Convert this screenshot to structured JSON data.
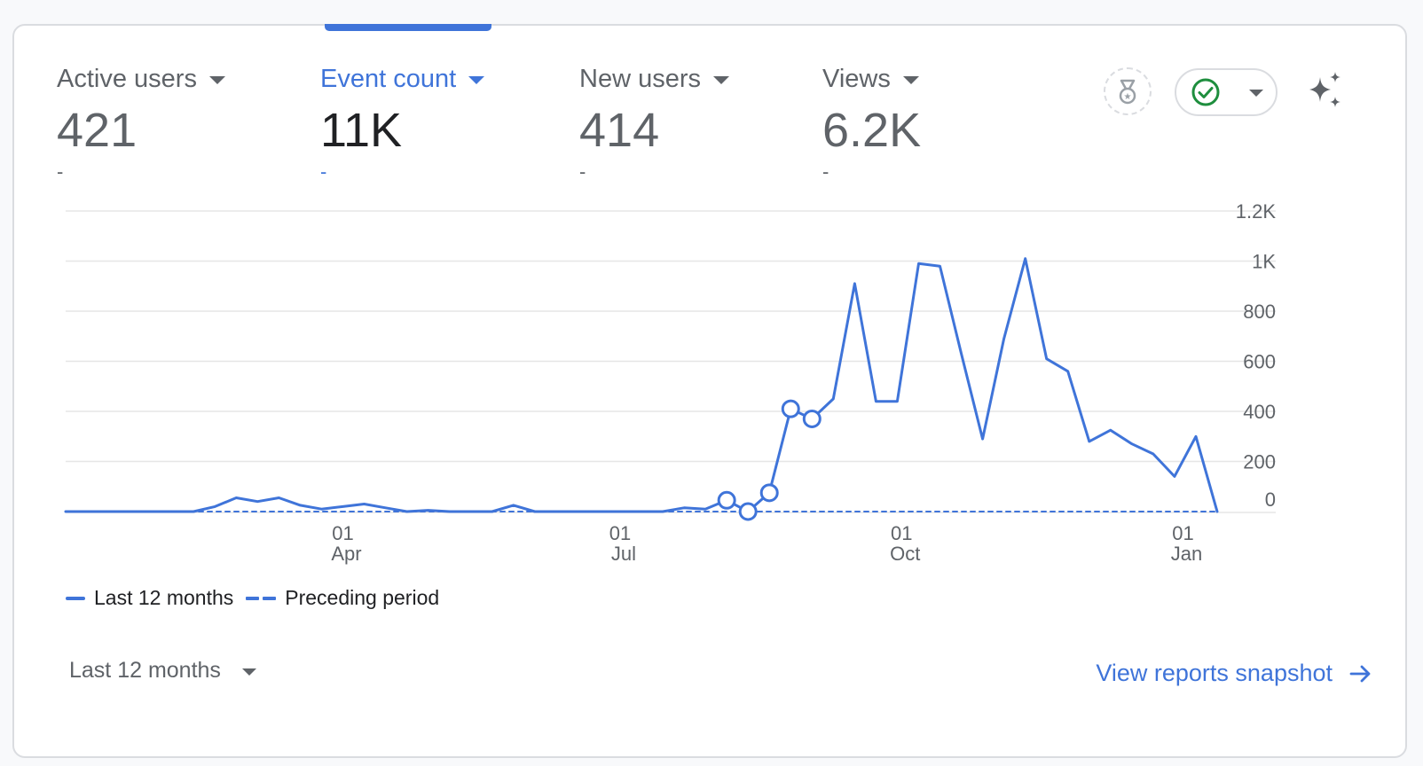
{
  "metrics": [
    {
      "label": "Active users",
      "value": "421",
      "delta": "-"
    },
    {
      "label": "Event count",
      "value": "11K",
      "delta": "-"
    },
    {
      "label": "New users",
      "value": "414",
      "delta": "-"
    },
    {
      "label": "Views",
      "value": "6.2K",
      "delta": "-"
    }
  ],
  "active_metric": "Event count",
  "colors": {
    "accent": "#3f74d9",
    "status_ok": "#1e8e3e",
    "text_muted": "#5f6368",
    "text_dark": "#202124",
    "grid": "#e6e6e6"
  },
  "icons": {
    "medal": "medal-icon",
    "status": "check-circle-icon",
    "insights": "sparkle-icon",
    "arrow": "arrow-right-icon"
  },
  "chart_data": {
    "type": "line",
    "title": "",
    "xlabel": "",
    "ylabel": "",
    "ylim": [
      0,
      1200
    ],
    "y_ticks": [
      "0",
      "200",
      "400",
      "600",
      "800",
      "1K",
      "1.2K"
    ],
    "y_tick_values": [
      0,
      200,
      400,
      600,
      800,
      1000,
      1200
    ],
    "x_ticks": [
      {
        "day": "01",
        "month": "Apr",
        "index": 13
      },
      {
        "day": "01",
        "month": "Jul",
        "index": 26
      },
      {
        "day": "01",
        "month": "Oct",
        "index": 39.2
      },
      {
        "day": "01",
        "month": "Jan",
        "index": 52.4
      }
    ],
    "series": [
      {
        "name": "Last 12 months",
        "style": "solid",
        "values": [
          0,
          0,
          0,
          0,
          0,
          0,
          0,
          20,
          55,
          40,
          55,
          25,
          10,
          20,
          30,
          15,
          0,
          5,
          0,
          0,
          0,
          25,
          0,
          0,
          0,
          0,
          0,
          0,
          0,
          15,
          10,
          45,
          0,
          75,
          410,
          370,
          450,
          910,
          440,
          440,
          990,
          980,
          630,
          290,
          690,
          1010,
          610,
          560,
          280,
          325,
          270,
          230,
          140,
          300,
          0
        ],
        "markers": [
          31,
          32,
          33,
          34,
          35
        ]
      },
      {
        "name": "Preceding period",
        "style": "dashed",
        "values": [
          0,
          0,
          0,
          0,
          0,
          0,
          0,
          0,
          0,
          0,
          0,
          0,
          0,
          0,
          0,
          0,
          0,
          0,
          0,
          0,
          0,
          0,
          0,
          0,
          0,
          0,
          0,
          0,
          0,
          0,
          0,
          0,
          0,
          0,
          0,
          0,
          0,
          0,
          0,
          0,
          0,
          0,
          0,
          0,
          0,
          0,
          0,
          0,
          0,
          0,
          0,
          0,
          0,
          0,
          0
        ]
      }
    ],
    "legend": [
      "Last 12 months",
      "Preceding period"
    ]
  },
  "footer": {
    "range_label": "Last 12 months",
    "link_label": "View reports snapshot"
  }
}
